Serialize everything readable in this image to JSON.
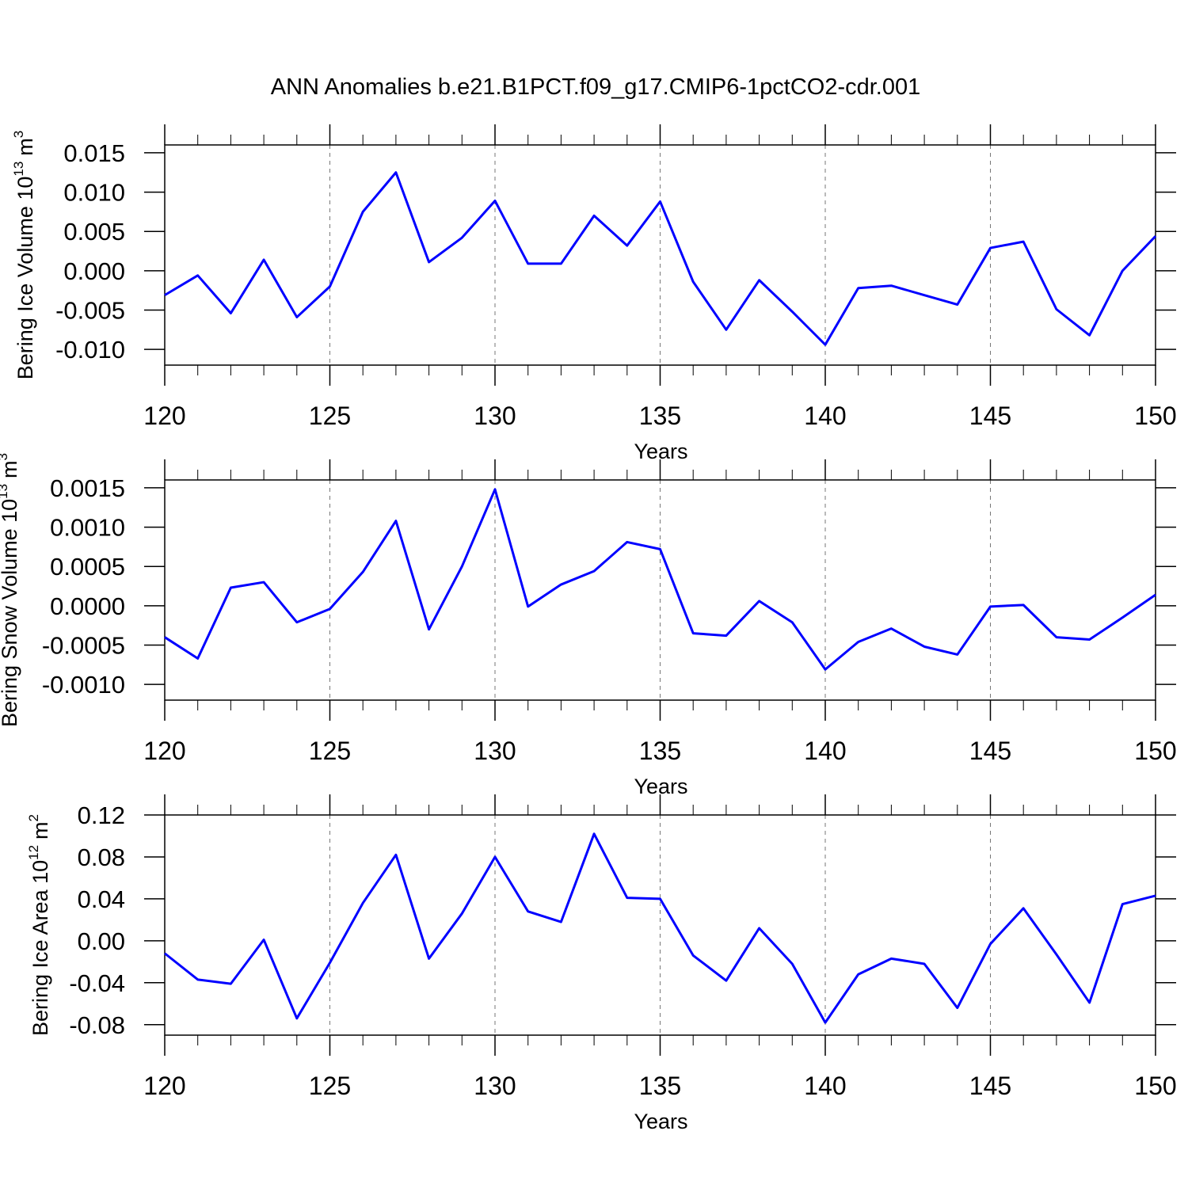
{
  "title": "ANN Anomalies b.e21.B1PCT.f09_g17.CMIP6-1pctCO2-cdr.001",
  "chart_data": [
    {
      "type": "line",
      "ylabel": [
        "Bering Ice Volume 10",
        "13",
        "m",
        "3"
      ],
      "xlabel": "Years",
      "color": "#0000ff",
      "grid": true,
      "x": [
        120,
        121,
        122,
        123,
        124,
        125,
        126,
        127,
        128,
        129,
        130,
        131,
        132,
        133,
        134,
        135,
        136,
        137,
        138,
        139,
        140,
        141,
        142,
        143,
        144,
        145,
        146,
        147,
        148,
        149,
        150
      ],
      "values": [
        -0.0031,
        -0.0006,
        -0.0054,
        0.0014,
        -0.0059,
        -0.002,
        0.0075,
        0.0125,
        0.0011,
        0.0042,
        0.0089,
        0.0009,
        0.0009,
        0.007,
        0.0032,
        0.0088,
        -0.0014,
        -0.0075,
        -0.0012,
        -0.0052,
        -0.0094,
        -0.0022,
        -0.0019,
        -0.0031,
        -0.0043,
        0.0029,
        0.0037,
        -0.0049,
        -0.0082,
        0.0,
        0.0044
      ],
      "xlim": [
        120,
        150
      ],
      "xticks": [
        120,
        125,
        130,
        135,
        140,
        145,
        150
      ],
      "ylim": [
        -0.012,
        0.016
      ],
      "yticks": [
        0.015,
        {
          "value": 0.01,
          "label": "0.010"
        },
        0.005,
        {
          "value": 0,
          "label": "0.000"
        },
        -0.005,
        {
          "value": -0.01,
          "label": "-0.010"
        }
      ]
    },
    {
      "type": "line",
      "ylabel": [
        "Bering Snow Volume 10",
        "13",
        "m",
        "3"
      ],
      "xlabel": "Years",
      "color": "#0000ff",
      "grid": true,
      "x": [
        120,
        121,
        122,
        123,
        124,
        125,
        126,
        127,
        128,
        129,
        130,
        131,
        132,
        133,
        134,
        135,
        136,
        137,
        138,
        139,
        140,
        141,
        142,
        143,
        144,
        145,
        146,
        147,
        148,
        149,
        150
      ],
      "values": [
        -0.0004,
        -0.00067,
        0.00023,
        0.0003,
        -0.00021,
        -4e-05,
        0.00043,
        0.00108,
        -0.0003,
        0.0005,
        0.00148,
        -1e-05,
        0.00027,
        0.00044,
        0.00081,
        0.00072,
        -0.00035,
        -0.00038,
        6e-05,
        -0.00021,
        -0.00081,
        -0.00046,
        -0.00029,
        -0.00052,
        -0.00062,
        -1e-05,
        1e-05,
        -0.0004,
        -0.00043,
        -0.00015,
        0.00014
      ],
      "xlim": [
        120,
        150
      ],
      "xticks": [
        120,
        125,
        130,
        135,
        140,
        145,
        150
      ],
      "ylim": [
        -0.0012,
        0.0016
      ],
      "yticks": [
        0.0015,
        {
          "value": 0.001,
          "label": "0.0010"
        },
        0.0005,
        {
          "value": 0,
          "label": "0.0000"
        },
        -0.0005,
        {
          "value": -0.001,
          "label": "-0.0010"
        }
      ]
    },
    {
      "type": "line",
      "ylabel": [
        "Bering Ice Area 10",
        "12",
        "m",
        "2"
      ],
      "xlabel": "Years",
      "color": "#0000ff",
      "grid": true,
      "x": [
        120,
        121,
        122,
        123,
        124,
        125,
        126,
        127,
        128,
        129,
        130,
        131,
        132,
        133,
        134,
        135,
        136,
        137,
        138,
        139,
        140,
        141,
        142,
        143,
        144,
        145,
        146,
        147,
        148,
        149,
        150
      ],
      "values": [
        -0.012,
        -0.037,
        -0.041,
        0.001,
        -0.074,
        -0.021,
        0.036,
        0.082,
        -0.017,
        0.026,
        0.08,
        0.028,
        0.018,
        0.102,
        0.041,
        0.04,
        -0.014,
        -0.038,
        0.012,
        -0.022,
        -0.078,
        -0.032,
        -0.017,
        -0.022,
        -0.064,
        -0.003,
        0.031,
        -0.013,
        -0.059,
        0.035,
        0.043
      ],
      "xlim": [
        120,
        150
      ],
      "xticks": [
        120,
        125,
        130,
        135,
        140,
        145,
        150
      ],
      "ylim": [
        -0.09,
        0.12
      ],
      "yticks": [
        0.12,
        0.08,
        0.04,
        {
          "value": 0,
          "label": "0.00"
        },
        -0.04,
        -0.08
      ]
    }
  ]
}
